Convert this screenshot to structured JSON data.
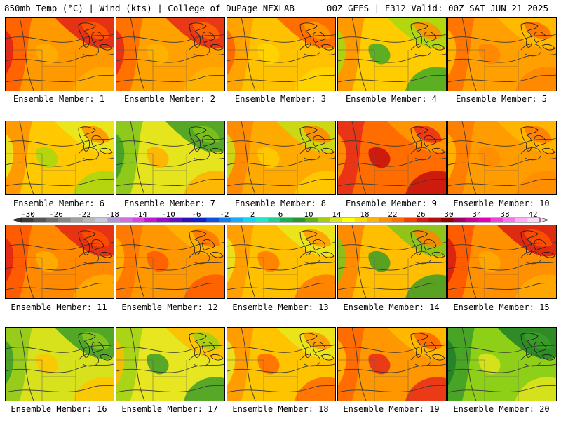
{
  "header": {
    "left": "850mb Temp (°C) | Wind (kts) | College of DuPage NEXLAB",
    "right": "00Z GEFS | F312 Valid: 00Z SAT JUN 21 2025"
  },
  "member_label": "Ensemble Member:",
  "members": [
    {
      "n": "1",
      "fill": [
        "#ff9900",
        "#ff5a00",
        "#e01f18",
        "#ffae00"
      ]
    },
    {
      "n": "2",
      "fill": [
        "#ffa200",
        "#ff6a00",
        "#e4261a",
        "#ffb400"
      ]
    },
    {
      "n": "3",
      "fill": [
        "#ffc200",
        "#ff9e00",
        "#ff6000",
        "#ffd500"
      ]
    },
    {
      "n": "4",
      "fill": [
        "#ffcc00",
        "#ff8f00",
        "#a6d810",
        "#3fa828"
      ]
    },
    {
      "n": "5",
      "fill": [
        "#ffa000",
        "#ff6e00",
        "#ffbe00",
        "#ff8500"
      ]
    },
    {
      "n": "6",
      "fill": [
        "#ffc800",
        "#ff9200",
        "#e8ea20",
        "#a8d810"
      ]
    },
    {
      "n": "7",
      "fill": [
        "#e6e41c",
        "#7fc41c",
        "#3c9c28",
        "#ffb000"
      ]
    },
    {
      "n": "8",
      "fill": [
        "#ffaa00",
        "#ff8600",
        "#c4e018",
        "#ffcc00"
      ]
    },
    {
      "n": "9",
      "fill": [
        "#ff6d00",
        "#e62a1a",
        "#ff9a00",
        "#c40e10"
      ]
    },
    {
      "n": "10",
      "fill": [
        "#ff9c00",
        "#ff7a00",
        "#ffb800",
        "#ff8c00"
      ]
    },
    {
      "n": "11",
      "fill": [
        "#ff8a00",
        "#ff5200",
        "#e02316",
        "#ffae00"
      ]
    },
    {
      "n": "12",
      "fill": [
        "#ff9800",
        "#ff7400",
        "#ffb400",
        "#ff5800"
      ]
    },
    {
      "n": "13",
      "fill": [
        "#ffc000",
        "#ff9a00",
        "#e8ea20",
        "#ff7a00"
      ]
    },
    {
      "n": "14",
      "fill": [
        "#ffbe00",
        "#ff8400",
        "#7fc41c",
        "#3c9c28"
      ]
    },
    {
      "n": "15",
      "fill": [
        "#ff9000",
        "#ff5400",
        "#d61a14",
        "#ffac00"
      ]
    },
    {
      "n": "16",
      "fill": [
        "#d8e21c",
        "#8cc81c",
        "#3c9c28",
        "#ffc600"
      ]
    },
    {
      "n": "17",
      "fill": [
        "#e8e620",
        "#9ed018",
        "#ffbc00",
        "#3c9c28"
      ]
    },
    {
      "n": "18",
      "fill": [
        "#ffc400",
        "#ff9600",
        "#e8ea20",
        "#ff6a00"
      ]
    },
    {
      "n": "19",
      "fill": [
        "#ff9800",
        "#ff6400",
        "#ffbc00",
        "#e62a1a"
      ]
    },
    {
      "n": "20",
      "fill": [
        "#8ed018",
        "#3c9c28",
        "#1f7f28",
        "#e0e41c"
      ]
    }
  ],
  "colorbar": {
    "labels": [
      "-30",
      "-26",
      "-22",
      "-18",
      "-14",
      "-10",
      "-6",
      "-2",
      "2",
      "6",
      "10",
      "14",
      "18",
      "22",
      "26",
      "30",
      "34",
      "38",
      "42"
    ],
    "colors": [
      "#3a3a3a",
      "#555555",
      "#6e6e6e",
      "#878787",
      "#a0a0a0",
      "#b8b8b8",
      "#c8c8d8",
      "#b494d8",
      "#d070e0",
      "#e040e8",
      "#c018d0",
      "#9010c8",
      "#6010c0",
      "#3010b8",
      "#1020c8",
      "#1050e0",
      "#1080f0",
      "#10b0f8",
      "#10d8f0",
      "#20e8c8",
      "#20d090",
      "#18b050",
      "#289828",
      "#60b018",
      "#a0d010",
      "#d8e818",
      "#ffff00",
      "#ffd800",
      "#ffb400",
      "#ff9000",
      "#ff6c00",
      "#f04000",
      "#d81818",
      "#b80c0c",
      "#8c0000",
      "#a00060",
      "#c80090",
      "#e000b8",
      "#f040d8",
      "#f878e8",
      "#ffb0f4",
      "#ffd8f8"
    ]
  }
}
